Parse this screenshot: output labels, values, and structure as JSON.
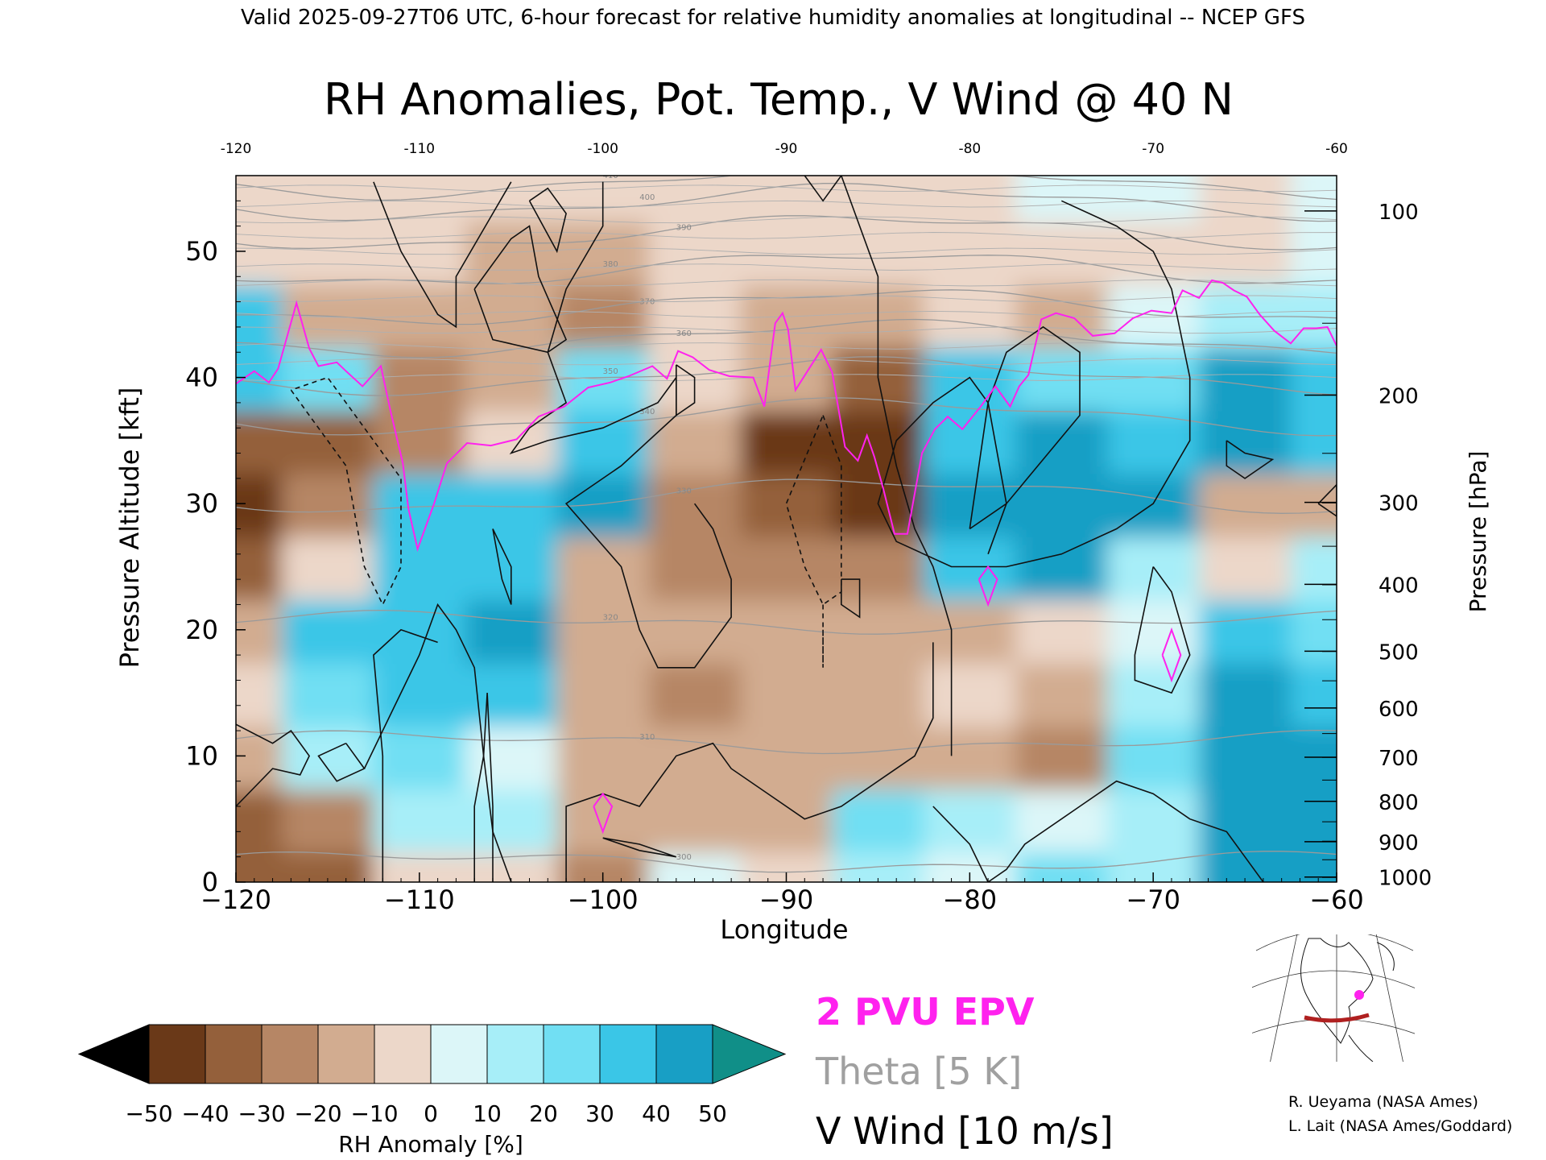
{
  "header": {
    "valid_line": "Valid 2025-09-27T06 UTC, 6-hour forecast for relative humidity anomalies at longitudinal -- NCEP GFS",
    "title": "RH Anomalies, Pot. Temp., V Wind @ 40 N"
  },
  "chart_data": {
    "type": "heatmap",
    "title": "RH Anomalies, Pot. Temp., V Wind @ 40 N",
    "xlabel": "Longitude",
    "ylabel_left": "Pressure Altitude [kft]",
    "ylabel_right": "Pressure [hPa]",
    "xlim": [
      -120,
      -60
    ],
    "ylim": [
      0,
      56
    ],
    "x_ticks": [
      "-120",
      "-110",
      "-100",
      "-90",
      "-80",
      "-70",
      "-60"
    ],
    "y_ticks": [
      "0",
      "10",
      "20",
      "30",
      "40",
      "50"
    ],
    "top_ticks": [
      "-120",
      "-110",
      "-100",
      "-90",
      "-80",
      "-70",
      "-60"
    ],
    "pressure_ticks": [
      {
        "label": "100",
        "kft": 53.2
      },
      {
        "label": "200",
        "kft": 38.6
      },
      {
        "label": "300",
        "kft": 30.1
      },
      {
        "label": "400",
        "kft": 23.6
      },
      {
        "label": "500",
        "kft": 18.3
      },
      {
        "label": "600",
        "kft": 13.8
      },
      {
        "label": "700",
        "kft": 9.9
      },
      {
        "label": "800",
        "kft": 6.4
      },
      {
        "label": "900",
        "kft": 3.2
      },
      {
        "label": "1000",
        "kft": 0.4
      }
    ],
    "grid": false,
    "heatmap_x": [
      -120,
      -115,
      -110,
      -105,
      -100,
      -95,
      -90,
      -85,
      -80,
      -75,
      -70,
      -65,
      -60
    ],
    "heatmap_y": [
      0,
      5,
      10,
      15,
      20,
      25,
      30,
      35,
      40,
      45,
      50,
      55
    ],
    "rh_anomaly": [
      [
        -40,
        -35,
        -5,
        -10,
        -25,
        5,
        -5,
        10,
        5,
        25,
        15,
        40,
        45
      ],
      [
        -35,
        -30,
        10,
        15,
        -20,
        -15,
        -20,
        20,
        15,
        5,
        10,
        40,
        40
      ],
      [
        -20,
        10,
        20,
        5,
        -15,
        -20,
        -15,
        -20,
        -20,
        -25,
        20,
        45,
        40
      ],
      [
        -10,
        25,
        30,
        35,
        -15,
        -25,
        -20,
        -20,
        -10,
        -20,
        15,
        40,
        30
      ],
      [
        -15,
        30,
        30,
        40,
        -15,
        -20,
        -20,
        -20,
        -15,
        -10,
        5,
        30,
        25
      ],
      [
        -35,
        -10,
        35,
        30,
        -20,
        -25,
        -25,
        -25,
        30,
        40,
        10,
        -10,
        15
      ],
      [
        -45,
        -25,
        30,
        35,
        40,
        -30,
        -40,
        -45,
        45,
        45,
        45,
        -15,
        -15
      ],
      [
        -40,
        -35,
        -30,
        -10,
        35,
        -20,
        -45,
        -50,
        35,
        40,
        30,
        40,
        35
      ],
      [
        30,
        20,
        -30,
        -20,
        20,
        -10,
        -20,
        -35,
        30,
        25,
        20,
        40,
        35
      ],
      [
        35,
        -20,
        -20,
        -15,
        -25,
        -10,
        -15,
        -15,
        -10,
        -15,
        5,
        10,
        15
      ],
      [
        -10,
        -5,
        -10,
        -20,
        -15,
        -10,
        -10,
        -10,
        -10,
        -5,
        -5,
        -5,
        5
      ],
      [
        -10,
        -10,
        -5,
        -5,
        -5,
        -5,
        -5,
        -5,
        -5,
        0,
        0,
        -5,
        0
      ]
    ],
    "theta_interval_label": "Theta [5 K]",
    "theta_labels": [
      {
        "text": "410",
        "x": -119.7,
        "y": 55.6
      },
      {
        "text": "400",
        "x": -120,
        "y": 53.9
      },
      {
        "text": "390",
        "x": -120,
        "y": 51.5
      },
      {
        "text": "380",
        "x": -120,
        "y": 48.6
      },
      {
        "text": "370",
        "x": -120,
        "y": 45.6
      },
      {
        "text": "360",
        "x": -120,
        "y": 43.1
      },
      {
        "text": "350",
        "x": -120,
        "y": 40.1
      },
      {
        "text": "340",
        "x": -120,
        "y": 36.9
      },
      {
        "text": "330",
        "x": -120,
        "y": 30.6
      },
      {
        "text": "320",
        "x": -120,
        "y": 20.6
      },
      {
        "text": "310",
        "x": -120,
        "y": 11.1
      },
      {
        "text": "300",
        "x": -120,
        "y": 1.6
      }
    ],
    "vwind_interval_label": "V Wind [10 m/s]",
    "epv_label": "2 PVU EPV",
    "epv_line": [
      [
        -120,
        39.5
      ],
      [
        -119,
        40.5
      ],
      [
        -118.2,
        39.6
      ],
      [
        -117.7,
        40.7
      ],
      [
        -116.7,
        45.9
      ],
      [
        -116,
        42.3
      ],
      [
        -115.5,
        40.9
      ],
      [
        -114.5,
        41.2
      ],
      [
        -114,
        40.5
      ],
      [
        -113.1,
        39.3
      ],
      [
        -112.1,
        40.9
      ],
      [
        -111.6,
        37.5
      ],
      [
        -110.9,
        33.2
      ],
      [
        -110.6,
        29.6
      ],
      [
        -110.1,
        26.4
      ],
      [
        -109.2,
        30.0
      ],
      [
        -108.5,
        33.2
      ],
      [
        -107.4,
        34.8
      ],
      [
        -106.1,
        34.6
      ],
      [
        -104.7,
        35.1
      ],
      [
        -103.5,
        36.9
      ],
      [
        -102.1,
        37.7
      ],
      [
        -100.8,
        39.2
      ],
      [
        -99.6,
        39.6
      ],
      [
        -98.6,
        40.1
      ],
      [
        -97.3,
        40.9
      ],
      [
        -96.5,
        39.9
      ],
      [
        -95.9,
        42.1
      ],
      [
        -95.1,
        41.6
      ],
      [
        -94.2,
        40.6
      ],
      [
        -93.1,
        40.1
      ],
      [
        -91.8,
        40.0
      ],
      [
        -91.2,
        37.7
      ],
      [
        -90.6,
        44.3
      ],
      [
        -90.2,
        45.1
      ],
      [
        -89.9,
        43.8
      ],
      [
        -89.5,
        39.0
      ],
      [
        -88.8,
        40.6
      ],
      [
        -88.1,
        42.2
      ],
      [
        -87.5,
        40.4
      ],
      [
        -86.8,
        34.5
      ],
      [
        -86.1,
        33.4
      ],
      [
        -85.6,
        35.4
      ],
      [
        -85.2,
        33.7
      ],
      [
        -84.7,
        31.1
      ],
      [
        -84.1,
        27.6
      ],
      [
        -83.4,
        27.6
      ],
      [
        -82.6,
        34.0
      ],
      [
        -81.9,
        35.9
      ],
      [
        -81.2,
        36.9
      ],
      [
        -80.4,
        35.9
      ],
      [
        -79.4,
        37.7
      ],
      [
        -78.6,
        39.3
      ],
      [
        -77.8,
        37.7
      ],
      [
        -77.3,
        39.3
      ],
      [
        -76.8,
        40.2
      ],
      [
        -76.1,
        44.6
      ],
      [
        -75.3,
        45.1
      ],
      [
        -74.3,
        44.7
      ],
      [
        -73.3,
        43.3
      ],
      [
        -72.1,
        43.5
      ],
      [
        -71.1,
        44.7
      ],
      [
        -70.1,
        45.3
      ],
      [
        -69,
        45.1
      ],
      [
        -68.4,
        46.9
      ],
      [
        -67.5,
        46.3
      ],
      [
        -66.8,
        47.7
      ],
      [
        -66.2,
        47.5
      ],
      [
        -65.6,
        46.9
      ],
      [
        -64.9,
        46.4
      ],
      [
        -64.2,
        45.0
      ],
      [
        -63.4,
        43.7
      ],
      [
        -62.5,
        42.7
      ],
      [
        -61.8,
        43.9
      ],
      [
        -61.1,
        43.9
      ],
      [
        -60.5,
        44.0
      ],
      [
        -60,
        42.5
      ]
    ],
    "colorbar": {
      "label": "RH Anomaly [%]",
      "tick_labels": [
        "-50",
        "-40",
        "-30",
        "-20",
        "-10",
        "0",
        "10",
        "20",
        "30",
        "40",
        "50"
      ],
      "colors": [
        "#3d1b08",
        "#6a3918",
        "#94603b",
        "#b68665",
        "#d2ac90",
        "#ecd7c9",
        "#dcf6f8",
        "#a7eef8",
        "#71dff3",
        "#3ac6e7",
        "#189fc5",
        "#0a7696",
        "#108f88"
      ],
      "under_color": "#000000",
      "over_color": "#108f88"
    }
  },
  "legend": {
    "epv": "2 PVU EPV",
    "theta": "Theta [5 K]",
    "vwind": "V Wind [10 m/s]",
    "epv_color": "#ff22ee",
    "theta_color": "#a0a0a0",
    "vwind_color": "#111111"
  },
  "credits": {
    "line1": "R. Ueyama (NASA Ames)",
    "line2": "L. Lait (NASA Ames/Goddard)"
  },
  "inset_map": {
    "location_marker_color": "#ff22ee",
    "section_line_color": "#b02020"
  }
}
